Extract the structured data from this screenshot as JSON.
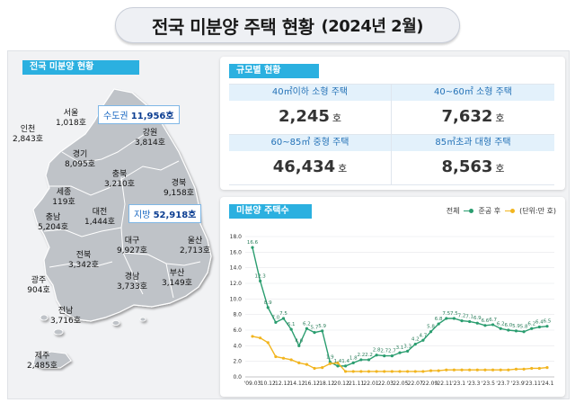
{
  "header": {
    "title": "전국 미분양 주택 현황",
    "period": "(2024년 2월)"
  },
  "map_section": {
    "label": "전국 미분양 현황",
    "capital_callout": {
      "name": "수도권",
      "value": "11,956호"
    },
    "local_callout": {
      "name": "지방",
      "value": "52,918호"
    },
    "regions": [
      {
        "id": "seoul",
        "name": "서울",
        "value": "1,018호"
      },
      {
        "id": "incheon",
        "name": "인천",
        "value": "2,843호"
      },
      {
        "id": "gyeonggi",
        "name": "경기",
        "value": "8,095호"
      },
      {
        "id": "gangwon",
        "name": "강원",
        "value": "3,814호"
      },
      {
        "id": "chungbuk",
        "name": "충북",
        "value": "3,210호"
      },
      {
        "id": "gyeongbuk",
        "name": "경북",
        "value": "9,158호"
      },
      {
        "id": "sejong",
        "name": "세종",
        "value": "119호"
      },
      {
        "id": "daejeon",
        "name": "대전",
        "value": "1,444호"
      },
      {
        "id": "chungnam",
        "name": "충남",
        "value": "5,204호"
      },
      {
        "id": "daegu",
        "name": "대구",
        "value": "9,927호"
      },
      {
        "id": "ulsan",
        "name": "울산",
        "value": "2,713호"
      },
      {
        "id": "jeonbuk",
        "name": "전북",
        "value": "3,342호"
      },
      {
        "id": "gyeongnam",
        "name": "경남",
        "value": "3,733호"
      },
      {
        "id": "busan",
        "name": "부산",
        "value": "3,149호"
      },
      {
        "id": "gwangju",
        "name": "광주",
        "value": "904호"
      },
      {
        "id": "jeonnam",
        "name": "전남",
        "value": "3,716호"
      },
      {
        "id": "jeju",
        "name": "제주",
        "value": "2,485호"
      }
    ]
  },
  "size_section": {
    "label": "규모별 현황",
    "unit": "호",
    "items": [
      {
        "name": "40㎡이하 소형 주택",
        "value": "2,245"
      },
      {
        "name": "40~60㎡ 소형 주택",
        "value": "7,632"
      },
      {
        "name": "60~85㎡ 중형 주택",
        "value": "46,434"
      },
      {
        "name": "85㎡초과 대형 주택",
        "value": "8,563"
      }
    ]
  },
  "chart_section": {
    "label": "미분양 주택수",
    "legend_total": "전체",
    "legend_completed": "준공 후",
    "unit_note": "(단위:만 호)"
  },
  "colors": {
    "total": "#2a9d6f",
    "completed": "#f2b51f",
    "tag": "#2bb0e0",
    "map_fill": "#bfc3c8"
  },
  "chart_data": {
    "type": "line",
    "ylim": [
      0,
      18
    ],
    "yticks": [
      0,
      2,
      4,
      6,
      8,
      10,
      12,
      14,
      16,
      18
    ],
    "x_tick_labels": [
      "'09.03",
      "'10.12",
      "'12.12",
      "'14.12",
      "'16.12",
      "'18.12",
      "'20.12",
      "'21.11",
      "'22.01",
      "'22.03",
      "'22.05",
      "'22.07",
      "'22.09",
      "'22.11",
      "'23.1",
      "'23.3",
      "'23.5",
      "'23.7",
      "'23.9",
      "'23.11",
      "'24.1"
    ],
    "series": [
      {
        "name": "전체",
        "values": [
          16.6,
          12.3,
          8.9,
          7.0,
          7.5,
          6.1,
          4.0,
          6.2,
          5.7,
          5.9,
          1.9,
          1.4,
          1.4,
          1.8,
          2.2,
          2.2,
          2.8,
          2.7,
          2.7,
          3.1,
          3.3,
          4.2,
          4.7,
          5.8,
          6.8,
          7.5,
          7.5,
          7.2,
          7.1,
          6.9,
          6.6,
          6.7,
          6.2,
          6.0,
          5.9,
          5.8,
          6.2,
          6.4,
          6.5
        ]
      },
      {
        "name": "준공 후",
        "values": [
          5.2,
          5.0,
          4.4,
          2.6,
          2.4,
          2.2,
          1.8,
          1.6,
          1.1,
          1.2,
          1.7,
          1.8,
          0.7,
          0.7,
          0.7,
          0.7,
          0.7,
          0.7,
          0.7,
          0.7,
          0.7,
          0.7,
          0.7,
          0.8,
          0.8,
          0.9,
          0.9,
          0.9,
          0.9,
          0.9,
          0.9,
          0.9,
          0.9,
          0.9,
          1.0,
          1.0,
          1.1,
          1.1,
          1.2
        ]
      }
    ],
    "value_labels_total": [
      "16.6",
      "12.3",
      "8.9",
      "7.0",
      "7.5",
      "6.1",
      "4.0",
      "6.2",
      "5.7",
      "5.9",
      "1.9",
      "1.4",
      "1.4",
      "1.8",
      "2.2",
      "2.2",
      "2.8",
      "2.7",
      "2.7",
      "3.1",
      "3.3",
      "4.2",
      "4.7",
      "5.8",
      "6.8",
      "7.5",
      "7.5",
      "7.2",
      "7.1",
      "6.9",
      "6.6",
      "6.7",
      "6.2",
      "6.0",
      "5.9",
      "5.8",
      "6.2",
      "6.4",
      "6.5"
    ]
  }
}
